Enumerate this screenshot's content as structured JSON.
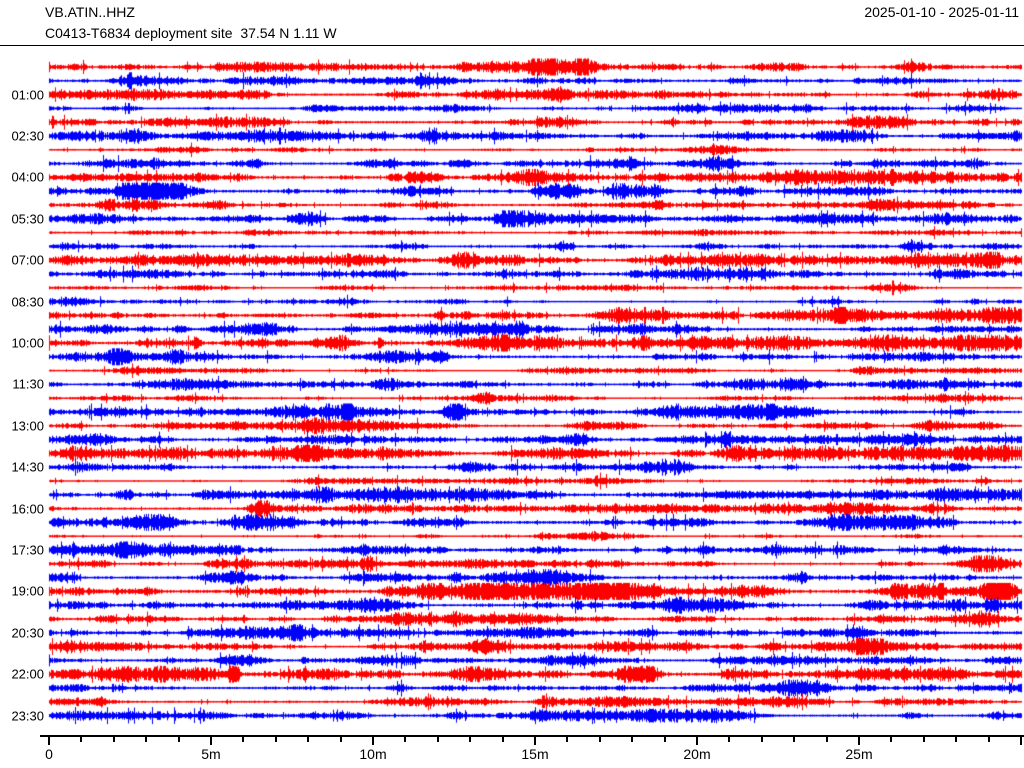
{
  "header": {
    "station_id": "VB.ATIN..HHZ",
    "date_range": "2025-01-10 - 2025-01-11",
    "subtitle": "C0413-T6834 deployment site  37.54 N 1.11 W"
  },
  "colors": {
    "red": "#ff0000",
    "blue": "#0000ff",
    "text": "#000000",
    "background": "#ffffff"
  },
  "chart_data": {
    "type": "line",
    "subtype": "helicorder-dayplot",
    "title": "VB.ATIN..HHZ",
    "date_range": "2025-01-10 - 2025-01-11",
    "minutes_per_line": 30,
    "number_of_lines": 48,
    "label_interval_minutes": 90,
    "grid": false,
    "legend": false,
    "y_labels": [
      "01:00",
      "02:30",
      "04:00",
      "05:30",
      "07:00",
      "08:30",
      "10:00",
      "11:30",
      "13:00",
      "14:30",
      "16:00",
      "17:30",
      "19:00",
      "20:30",
      "22:00",
      "23:30"
    ],
    "x_axis": {
      "minor_tick_every_minutes": 1,
      "max_minutes": 30,
      "ticks": [
        {
          "m": 0,
          "label": "0"
        },
        {
          "m": 5,
          "label": "5m"
        },
        {
          "m": 10,
          "label": "10m"
        },
        {
          "m": 15,
          "label": "15m"
        },
        {
          "m": 20,
          "label": "20m"
        },
        {
          "m": 25,
          "label": "25m"
        }
      ]
    },
    "traces": [
      {
        "start": "00:00",
        "color": "red",
        "amp": 2.2,
        "bursts": []
      },
      {
        "start": "00:30",
        "color": "blue",
        "amp": 2.3,
        "bursts": [
          {
            "m": 11.5,
            "g": 1.5,
            "w": 0.15
          }
        ]
      },
      {
        "start": "01:00",
        "color": "red",
        "amp": 2.1,
        "bursts": []
      },
      {
        "start": "01:30",
        "color": "blue",
        "amp": 1.7,
        "bursts": []
      },
      {
        "start": "02:00",
        "color": "red",
        "amp": 2.2,
        "bursts": [
          {
            "m": 19.2,
            "g": 1.8,
            "w": 0.2
          }
        ]
      },
      {
        "start": "02:30",
        "color": "blue",
        "amp": 2.3,
        "bursts": [
          {
            "m": 1.5,
            "g": 1.2,
            "w": 0.5
          }
        ]
      },
      {
        "start": "03:00",
        "color": "red",
        "amp": 0.9,
        "bursts": [
          {
            "m": 16.7,
            "g": 1.4,
            "w": 0.1
          }
        ]
      },
      {
        "start": "03:30",
        "color": "blue",
        "amp": 2.1,
        "bursts": []
      },
      {
        "start": "04:00",
        "color": "red",
        "amp": 2.5,
        "bursts": []
      },
      {
        "start": "04:30",
        "color": "blue",
        "amp": 2.5,
        "bursts": [
          {
            "m": 2.5,
            "g": 1.2,
            "w": 0.3
          }
        ]
      },
      {
        "start": "05:00",
        "color": "red",
        "amp": 2.2,
        "bursts": [
          {
            "m": 1.8,
            "g": 1.4,
            "w": 0.2
          }
        ]
      },
      {
        "start": "05:30",
        "color": "blue",
        "amp": 2.1,
        "bursts": []
      },
      {
        "start": "06:00",
        "color": "red",
        "amp": 1.1,
        "bursts": []
      },
      {
        "start": "06:30",
        "color": "blue",
        "amp": 2.0,
        "bursts": [
          {
            "m": 6.2,
            "g": 1.6,
            "w": 0.2
          }
        ]
      },
      {
        "start": "07:00",
        "color": "red",
        "amp": 2.4,
        "bursts": []
      },
      {
        "start": "07:30",
        "color": "blue",
        "amp": 2.4,
        "bursts": []
      },
      {
        "start": "08:00",
        "color": "red",
        "amp": 1.1,
        "bursts": []
      },
      {
        "start": "08:30",
        "color": "blue",
        "amp": 1.5,
        "bursts": [
          {
            "m": 27.5,
            "g": 1.8,
            "w": 0.3
          }
        ]
      },
      {
        "start": "09:00",
        "color": "red",
        "amp": 2.7,
        "bursts": []
      },
      {
        "start": "09:30",
        "color": "blue",
        "amp": 2.3,
        "bursts": [
          {
            "m": 4.0,
            "g": 1.5,
            "w": 0.2
          }
        ]
      },
      {
        "start": "10:00",
        "color": "red",
        "amp": 2.8,
        "bursts": []
      },
      {
        "start": "10:30",
        "color": "blue",
        "amp": 2.4,
        "bursts": [
          {
            "m": 12.2,
            "g": 1.1,
            "w": 0.4
          }
        ]
      },
      {
        "start": "11:00",
        "color": "red",
        "amp": 1.1,
        "bursts": []
      },
      {
        "start": "11:30",
        "color": "blue",
        "amp": 2.0,
        "bursts": [
          {
            "m": 10.5,
            "g": 1.2,
            "w": 0.5
          }
        ]
      },
      {
        "start": "12:00",
        "color": "red",
        "amp": 1.2,
        "bursts": [
          {
            "m": 13.5,
            "g": 1.3,
            "w": 0.3
          }
        ]
      },
      {
        "start": "12:30",
        "color": "blue",
        "amp": 2.6,
        "bursts": []
      },
      {
        "start": "13:00",
        "color": "red",
        "amp": 1.8,
        "bursts": []
      },
      {
        "start": "13:30",
        "color": "blue",
        "amp": 2.2,
        "bursts": [
          {
            "m": 3.2,
            "g": 1.2,
            "w": 0.4
          }
        ]
      },
      {
        "start": "14:00",
        "color": "red",
        "amp": 2.6,
        "bursts": []
      },
      {
        "start": "14:30",
        "color": "blue",
        "amp": 2.2,
        "bursts": []
      },
      {
        "start": "15:00",
        "color": "red",
        "amp": 1.3,
        "bursts": [
          {
            "m": 28.8,
            "g": 1.4,
            "w": 0.2
          }
        ]
      },
      {
        "start": "15:30",
        "color": "blue",
        "amp": 2.2,
        "bursts": [
          {
            "m": 2.3,
            "g": 1.3,
            "w": 0.3
          }
        ]
      },
      {
        "start": "16:00",
        "color": "red",
        "amp": 2.0,
        "bursts": [
          {
            "m": 6.5,
            "g": 1.2,
            "w": 0.3
          }
        ]
      },
      {
        "start": "16:30",
        "color": "blue",
        "amp": 2.7,
        "bursts": []
      },
      {
        "start": "17:00",
        "color": "red",
        "amp": 1.2,
        "bursts": []
      },
      {
        "start": "17:30",
        "color": "blue",
        "amp": 2.4,
        "bursts": [
          {
            "m": 15.8,
            "g": 1.2,
            "w": 0.4
          }
        ]
      },
      {
        "start": "18:00",
        "color": "red",
        "amp": 1.9,
        "bursts": []
      },
      {
        "start": "18:30",
        "color": "blue",
        "amp": 2.4,
        "bursts": [
          {
            "m": 15.5,
            "g": 1.3,
            "w": 0.6
          }
        ]
      },
      {
        "start": "19:00",
        "color": "red",
        "amp": 2.9,
        "bursts": [
          {
            "m": 29.4,
            "g": 2.2,
            "w": 0.4
          }
        ]
      },
      {
        "start": "19:30",
        "color": "blue",
        "amp": 2.3,
        "bursts": []
      },
      {
        "start": "20:00",
        "color": "red",
        "amp": 2.0,
        "bursts": [
          {
            "m": 10.5,
            "g": 1.3,
            "w": 0.3
          }
        ]
      },
      {
        "start": "20:30",
        "color": "blue",
        "amp": 2.4,
        "bursts": [
          {
            "m": 0.8,
            "g": 1.5,
            "w": 0.3
          }
        ]
      },
      {
        "start": "21:00",
        "color": "red",
        "amp": 1.9,
        "bursts": []
      },
      {
        "start": "21:30",
        "color": "blue",
        "amp": 2.0,
        "bursts": []
      },
      {
        "start": "22:00",
        "color": "red",
        "amp": 2.9,
        "bursts": []
      },
      {
        "start": "22:30",
        "color": "blue",
        "amp": 2.0,
        "bursts": []
      },
      {
        "start": "23:00",
        "color": "red",
        "amp": 2.0,
        "bursts": [
          {
            "m": 15.3,
            "g": 2.0,
            "w": 0.25
          }
        ]
      },
      {
        "start": "23:30",
        "color": "blue",
        "amp": 2.1,
        "bursts": [
          {
            "m": 29.3,
            "g": 2.5,
            "w": 0.3
          }
        ]
      }
    ]
  }
}
